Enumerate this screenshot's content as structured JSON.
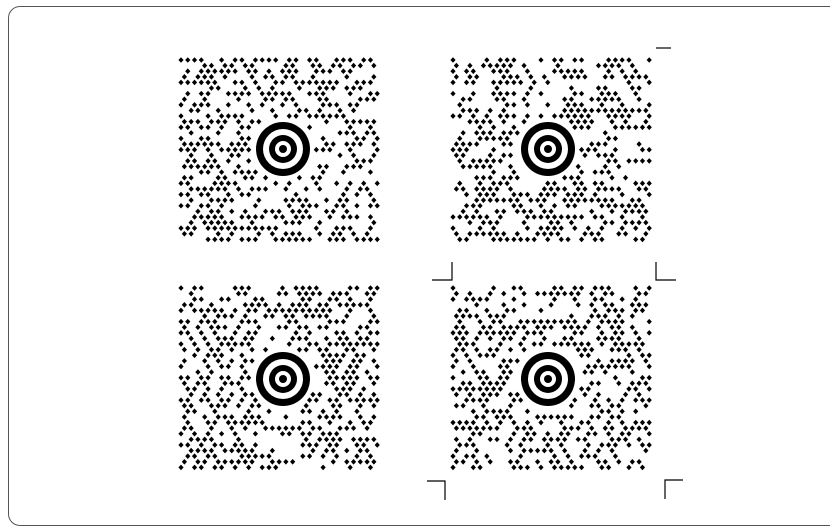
{
  "panel": {
    "border_color": "#555555",
    "background": "#ffffff"
  },
  "codes": [
    {
      "id": "code-top-left",
      "seed": 11,
      "module_color": "#000000",
      "target_icon": "bullseye-icon"
    },
    {
      "id": "code-top-right",
      "seed": 29,
      "module_color": "#000000",
      "target_icon": "bullseye-icon"
    },
    {
      "id": "code-bottom-left",
      "seed": 47,
      "module_color": "#000000",
      "target_icon": "bullseye-icon"
    },
    {
      "id": "code-bottom-right",
      "seed": 83,
      "module_color": "#000000",
      "target_icon": "bullseye-icon"
    }
  ],
  "registration_marks": [
    {
      "id": "mark-1",
      "icon": "corner-mark-icon"
    },
    {
      "id": "mark-2",
      "icon": "corner-mark-icon"
    },
    {
      "id": "mark-3",
      "icon": "corner-mark-icon"
    },
    {
      "id": "mark-4",
      "icon": "corner-mark-icon"
    },
    {
      "id": "mark-5",
      "icon": "corner-mark-icon"
    },
    {
      "id": "mark-6",
      "icon": "tick-mark-icon"
    }
  ]
}
